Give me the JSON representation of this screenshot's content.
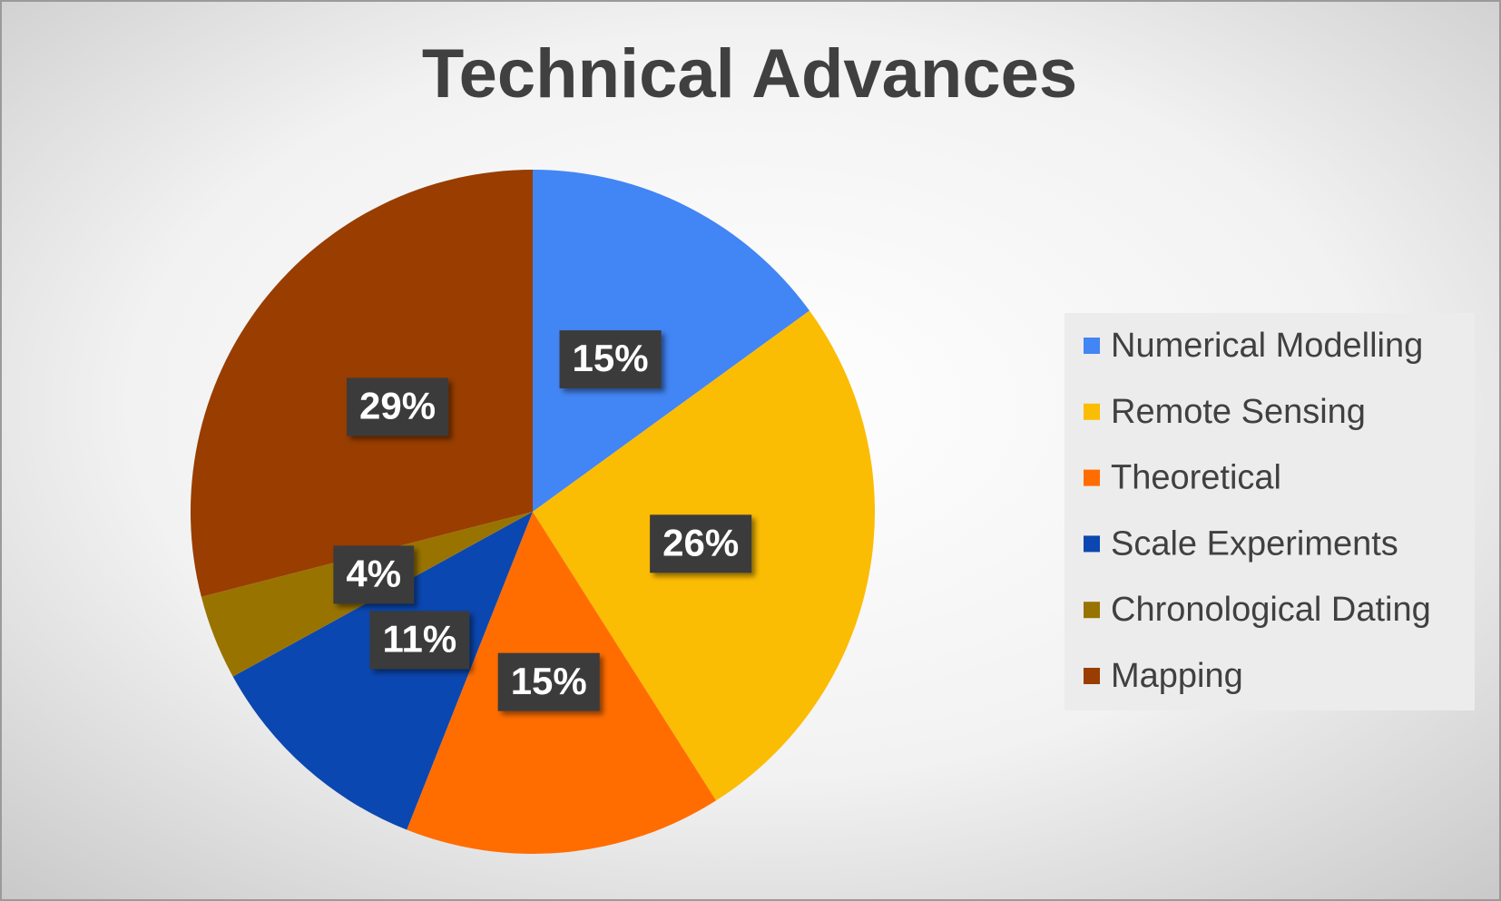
{
  "chart_data": {
    "type": "pie",
    "title": "Technical Advances",
    "categories": [
      "Numerical Modelling",
      "Remote Sensing",
      "Theoretical",
      "Scale Experiments",
      "Chronological Dating",
      "Mapping"
    ],
    "values": [
      15,
      26,
      15,
      11,
      4,
      29
    ],
    "value_labels": [
      "15%",
      "26%",
      "15%",
      "11%",
      "4%",
      "29%"
    ],
    "colors": [
      "#4285f4",
      "#fbbc04",
      "#ff6d01",
      "#0b47b0",
      "#997300",
      "#993d00"
    ],
    "legend": "right"
  }
}
